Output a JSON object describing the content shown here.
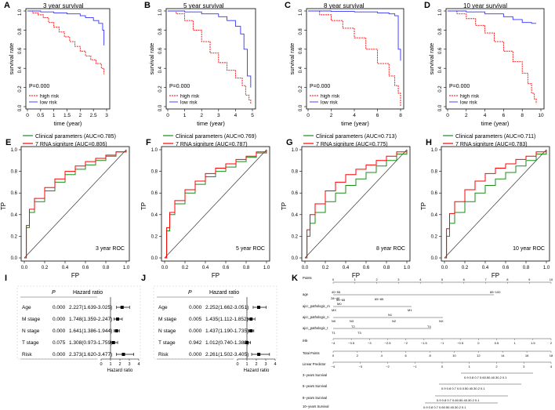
{
  "figure": {
    "colors": {
      "high": "#ff0000",
      "low": "#3333ff",
      "clinical": "#1a8c1a",
      "rna": "#ff0000",
      "axis": "#000000",
      "diag": "#333333"
    },
    "km_panels": [
      {
        "letter": "A",
        "title": "3 year survival",
        "pvalue": "P=0.000",
        "legend": [
          "high risk",
          "low risk"
        ]
      },
      {
        "letter": "B",
        "title": "5 year survival",
        "pvalue": "P=0.000",
        "legend": [
          "high risk",
          "low risk"
        ]
      },
      {
        "letter": "C",
        "title": "8 year survival",
        "pvalue": "P=0.000",
        "legend": [
          "high risk",
          "low risk"
        ]
      },
      {
        "letter": "D",
        "title": "10 year survival",
        "pvalue": "P=0.000",
        "legend": [
          "high risk",
          "low risk"
        ]
      }
    ],
    "roc_panels": [
      {
        "letter": "E",
        "label": "3 year ROC",
        "legend": [
          "Clinical parameters (AUC=0.785)",
          "7 RNA signiture (AUC=0.806)"
        ]
      },
      {
        "letter": "F",
        "label": "5 year ROC",
        "legend": [
          "Clinical parameters (AUC=0.769)",
          "7 RNA signiture (AUC=0.787)"
        ]
      },
      {
        "letter": "G",
        "label": "8 year ROC",
        "legend": [
          "Clinical parameters (AUC=0.713)",
          "7 RNA signiture (AUC=0.775)"
        ]
      },
      {
        "letter": "H",
        "label": "10 year ROC",
        "legend": [
          "Clinical parameters (AUC=0.711)",
          "7 RNA signiture (AUC=0.783)"
        ]
      }
    ],
    "forest_panels": [
      {
        "letter": "I",
        "header": [
          "",
          "P",
          "Hazard ratio"
        ],
        "xlabel": "Hazard ratio",
        "xticks": [
          "0",
          "1",
          "2",
          "3",
          "4"
        ]
      },
      {
        "letter": "J",
        "header": [
          "",
          "P",
          "Hazard ratio"
        ],
        "xlabel": "Hazard ratio",
        "xticks": [
          "0",
          "1",
          "2",
          "3",
          "4"
        ]
      }
    ],
    "nomogram": {
      "letter": "K",
      "rows": [
        "Points",
        "age",
        "ajcc_pathologic_m",
        "ajcc_pathologic_n",
        "ajcc_pathologic_t",
        "risk",
        "Total Points",
        "Linear Predictor",
        "3−years Survival",
        "5−years Survival",
        "8−years Survival",
        "10−years Survival"
      ],
      "points_ticks": [
        "0",
        "1",
        "2",
        "3",
        "4",
        "5",
        "6",
        "7",
        "8",
        "9",
        "10"
      ],
      "age_labels": [
        "40−55",
        "28−40",
        "55−65",
        "65−85",
        "85−100"
      ],
      "m_labels": [
        "MX",
        "M0",
        "M1"
      ],
      "n_labels": [
        "N0",
        "N3",
        "N2",
        "NX",
        "N1"
      ],
      "t_labels": [
        "T1",
        "T2",
        "T3",
        "T4"
      ],
      "risk_ticks": [
        "−4",
        "−3.5",
        "−3",
        "−2.5",
        "−2",
        "−1.5",
        "−1",
        "−0.5",
        "0",
        "0.5",
        "1",
        "1.5",
        "2"
      ],
      "total_ticks": [
        "0",
        "2",
        "4",
        "6",
        "8",
        "10",
        "12",
        "14",
        "16",
        "18"
      ],
      "lp_ticks": [
        "−4",
        "−3",
        "−2",
        "−1",
        "0",
        "1",
        "2",
        "3",
        "4"
      ],
      "surv3": "0.9    0.8  0.7 0.60.50.40.30.2 0.1",
      "surv5": "0.9     0.8  0.7 0.6 0.50.40.30.2 0.1",
      "surv8": "0.9    0.8  0.7 0.60.50.40.30.2 0.1",
      "surv10": "0.9    0.8  0.7 0.60.50.40.30.2 0.1"
    }
  },
  "chart_data": [
    {
      "type": "line",
      "id": "A",
      "title": "3 year survival",
      "xlabel": "time (year)",
      "ylabel": "survival rate",
      "xlim": [
        0,
        3
      ],
      "ylim": [
        0,
        1
      ],
      "xticks": [
        "0",
        "0.5",
        "1",
        "1.5",
        "2",
        "2.5",
        "3"
      ],
      "yticks": [
        "0.0",
        "0.2",
        "0.4",
        "0.6",
        "0.8",
        "1.0"
      ],
      "series": [
        {
          "name": "high risk",
          "x": [
            0,
            0.2,
            0.4,
            0.6,
            0.8,
            1.0,
            1.2,
            1.4,
            1.6,
            1.8,
            2.0,
            2.2,
            2.4,
            2.6,
            2.8,
            2.9
          ],
          "values": [
            1.0,
            0.98,
            0.96,
            0.93,
            0.88,
            0.83,
            0.78,
            0.73,
            0.68,
            0.63,
            0.58,
            0.53,
            0.49,
            0.45,
            0.4,
            0.34
          ]
        },
        {
          "name": "low risk",
          "x": [
            0,
            0.5,
            1.0,
            1.5,
            2.0,
            2.2,
            2.5,
            2.7,
            2.85,
            2.9
          ],
          "values": [
            1.0,
            0.99,
            0.98,
            0.97,
            0.95,
            0.93,
            0.9,
            0.87,
            0.8,
            0.64
          ]
        }
      ]
    },
    {
      "type": "line",
      "id": "B",
      "title": "5 year survival",
      "xlabel": "time (year)",
      "ylabel": "survival rate",
      "xlim": [
        0,
        5
      ],
      "ylim": [
        0,
        1
      ],
      "xticks": [
        "0",
        "1",
        "2",
        "3",
        "4",
        "5"
      ],
      "yticks": [
        "0.0",
        "0.2",
        "0.4",
        "0.6",
        "0.8",
        "1.0"
      ],
      "series": [
        {
          "name": "high risk",
          "x": [
            0,
            0.5,
            1.0,
            1.5,
            2.0,
            2.5,
            3.0,
            3.5,
            4.0,
            4.4,
            4.6,
            4.8,
            4.9
          ],
          "values": [
            1.0,
            0.97,
            0.9,
            0.8,
            0.68,
            0.56,
            0.46,
            0.38,
            0.3,
            0.22,
            0.12,
            0.07,
            0.03
          ]
        },
        {
          "name": "low risk",
          "x": [
            0,
            1,
            2,
            3,
            3.5,
            4.0,
            4.3,
            4.5,
            4.7,
            4.9
          ],
          "values": [
            1.0,
            0.99,
            0.97,
            0.94,
            0.9,
            0.84,
            0.76,
            0.6,
            0.32,
            0.2
          ]
        }
      ]
    },
    {
      "type": "line",
      "id": "C",
      "title": "8 year survival",
      "xlabel": "time (year)",
      "ylabel": "survival rate",
      "xlim": [
        0,
        8
      ],
      "ylim": [
        0,
        1
      ],
      "xticks": [
        "0",
        "2",
        "4",
        "6",
        "8"
      ],
      "yticks": [
        "0.0",
        "0.2",
        "0.4",
        "0.6",
        "0.8",
        "1.0"
      ],
      "series": [
        {
          "name": "high risk",
          "x": [
            0,
            1,
            2,
            3,
            4,
            5,
            6,
            7,
            7.5,
            7.8,
            8.0
          ],
          "values": [
            1.0,
            0.96,
            0.9,
            0.82,
            0.72,
            0.6,
            0.45,
            0.32,
            0.22,
            0.14,
            0.0
          ]
        },
        {
          "name": "low risk",
          "x": [
            0,
            2,
            4,
            6,
            7,
            7.5,
            7.8,
            8.0
          ],
          "values": [
            1.0,
            0.995,
            0.99,
            0.98,
            0.97,
            0.95,
            0.6,
            0.48
          ]
        }
      ]
    },
    {
      "type": "line",
      "id": "D",
      "title": "10 year survival",
      "xlabel": "time (year)",
      "ylabel": "survival rate",
      "xlim": [
        0,
        10
      ],
      "ylim": [
        0,
        1
      ],
      "xticks": [
        "0",
        "2",
        "4",
        "6",
        "8",
        "10"
      ],
      "yticks": [
        "0.0",
        "0.2",
        "0.4",
        "0.6",
        "0.8",
        "1.0"
      ],
      "series": [
        {
          "name": "high risk",
          "x": [
            0,
            1,
            2,
            3,
            4,
            5,
            6,
            7,
            8,
            8.6,
            9.0,
            9.3,
            9.5
          ],
          "values": [
            1.0,
            0.97,
            0.92,
            0.85,
            0.77,
            0.68,
            0.58,
            0.47,
            0.35,
            0.24,
            0.14,
            0.08,
            0.03
          ]
        },
        {
          "name": "low risk",
          "x": [
            0,
            2,
            4,
            6,
            7,
            8,
            9,
            9.5
          ],
          "values": [
            1.0,
            0.99,
            0.97,
            0.94,
            0.91,
            0.88,
            0.87,
            0.87
          ]
        }
      ]
    },
    {
      "type": "line",
      "id": "E",
      "xlabel": "FP",
      "ylabel": "TP",
      "xlim": [
        0,
        1
      ],
      "ylim": [
        0,
        1
      ],
      "xticks": [
        "0.0",
        "0.2",
        "0.4",
        "0.6",
        "0.8",
        "1.0"
      ],
      "yticks": [
        "0.0",
        "0.2",
        "0.4",
        "0.6",
        "0.8",
        "1.0"
      ],
      "series": [
        {
          "name": "Clinical parameters (AUC=0.785)",
          "x": [
            0,
            0.02,
            0.05,
            0.1,
            0.2,
            0.3,
            0.4,
            0.5,
            0.6,
            0.7,
            0.8,
            0.9,
            1.0
          ],
          "values": [
            0,
            0.28,
            0.42,
            0.52,
            0.62,
            0.7,
            0.77,
            0.82,
            0.86,
            0.9,
            0.94,
            0.98,
            1.0
          ]
        },
        {
          "name": "7 RNA signiture (AUC=0.806)",
          "x": [
            0,
            0.02,
            0.05,
            0.1,
            0.2,
            0.3,
            0.4,
            0.5,
            0.6,
            0.7,
            0.8,
            0.9,
            1.0
          ],
          "values": [
            0,
            0.3,
            0.45,
            0.55,
            0.65,
            0.73,
            0.8,
            0.85,
            0.89,
            0.92,
            0.95,
            0.98,
            1.0
          ]
        }
      ]
    },
    {
      "type": "line",
      "id": "F",
      "xlabel": "FP",
      "ylabel": "TP",
      "xlim": [
        0,
        1
      ],
      "ylim": [
        0,
        1
      ],
      "xticks": [
        "0.0",
        "0.2",
        "0.4",
        "0.6",
        "0.8",
        "1.0"
      ],
      "yticks": [
        "0.0",
        "0.2",
        "0.4",
        "0.6",
        "0.8",
        "1.0"
      ],
      "series": [
        {
          "name": "Clinical parameters (AUC=0.769)",
          "x": [
            0,
            0.02,
            0.05,
            0.1,
            0.2,
            0.3,
            0.4,
            0.5,
            0.6,
            0.7,
            0.8,
            0.9,
            1.0
          ],
          "values": [
            0,
            0.25,
            0.4,
            0.5,
            0.6,
            0.68,
            0.75,
            0.8,
            0.84,
            0.89,
            0.93,
            0.97,
            1.0
          ]
        },
        {
          "name": "7 RNA signiture (AUC=0.787)",
          "x": [
            0,
            0.02,
            0.05,
            0.1,
            0.2,
            0.3,
            0.4,
            0.5,
            0.6,
            0.7,
            0.8,
            0.9,
            1.0
          ],
          "values": [
            0,
            0.28,
            0.42,
            0.53,
            0.63,
            0.71,
            0.78,
            0.83,
            0.87,
            0.91,
            0.94,
            0.98,
            1.0
          ]
        }
      ]
    },
    {
      "type": "line",
      "id": "G",
      "xlabel": "FP",
      "ylabel": "TP",
      "xlim": [
        0,
        1
      ],
      "ylim": [
        0,
        1
      ],
      "xticks": [
        "0.0",
        "0.2",
        "0.4",
        "0.6",
        "0.8",
        "1.0"
      ],
      "yticks": [
        "0.0",
        "0.2",
        "0.4",
        "0.6",
        "0.8",
        "1.0"
      ],
      "series": [
        {
          "name": "Clinical parameters (AUC=0.713)",
          "x": [
            0,
            0.02,
            0.05,
            0.1,
            0.2,
            0.3,
            0.4,
            0.5,
            0.6,
            0.7,
            0.8,
            0.9,
            1.0
          ],
          "values": [
            0,
            0.2,
            0.32,
            0.42,
            0.52,
            0.6,
            0.67,
            0.73,
            0.79,
            0.85,
            0.9,
            0.96,
            1.0
          ]
        },
        {
          "name": "7 RNA signiture (AUC=0.775)",
          "x": [
            0,
            0.02,
            0.05,
            0.1,
            0.2,
            0.3,
            0.4,
            0.5,
            0.6,
            0.7,
            0.8,
            0.9,
            1.0
          ],
          "values": [
            0,
            0.26,
            0.4,
            0.5,
            0.62,
            0.7,
            0.77,
            0.82,
            0.86,
            0.9,
            0.94,
            0.98,
            1.0
          ]
        }
      ]
    },
    {
      "type": "line",
      "id": "H",
      "xlabel": "FP",
      "ylabel": "TP",
      "xlim": [
        0,
        1
      ],
      "ylim": [
        0,
        1
      ],
      "xticks": [
        "0.0",
        "0.2",
        "0.4",
        "0.6",
        "0.8",
        "1.0"
      ],
      "yticks": [
        "0.0",
        "0.2",
        "0.4",
        "0.6",
        "0.8",
        "1.0"
      ],
      "series": [
        {
          "name": "Clinical parameters (AUC=0.711)",
          "x": [
            0,
            0.02,
            0.05,
            0.1,
            0.2,
            0.3,
            0.4,
            0.5,
            0.6,
            0.7,
            0.8,
            0.9,
            1.0
          ],
          "values": [
            0,
            0.2,
            0.32,
            0.42,
            0.52,
            0.6,
            0.67,
            0.73,
            0.79,
            0.85,
            0.9,
            0.96,
            1.0
          ]
        },
        {
          "name": "7 RNA signiture (AUC=0.783)",
          "x": [
            0,
            0.02,
            0.05,
            0.1,
            0.2,
            0.3,
            0.4,
            0.5,
            0.6,
            0.7,
            0.8,
            0.9,
            1.0
          ],
          "values": [
            0,
            0.27,
            0.41,
            0.52,
            0.63,
            0.71,
            0.78,
            0.83,
            0.87,
            0.91,
            0.94,
            0.98,
            1.0
          ]
        }
      ]
    },
    {
      "type": "table",
      "id": "I",
      "title": "Forest plot",
      "xlim": [
        0,
        4
      ],
      "rows": [
        {
          "name": "Age",
          "p": "0.000",
          "hr_text": "2.227(1.639-3.025)",
          "hr": 2.227,
          "lo": 1.639,
          "hi": 3.025
        },
        {
          "name": "M stage",
          "p": "0.000",
          "hr_text": "1.748(1.359-2.247)",
          "hr": 1.748,
          "lo": 1.359,
          "hi": 2.247
        },
        {
          "name": "N stage",
          "p": "0.000",
          "hr_text": "1.641(1.386-1.944)",
          "hr": 1.641,
          "lo": 1.386,
          "hi": 1.944
        },
        {
          "name": "T stage",
          "p": "0.075",
          "hr_text": "1.308(0.973-1.759)",
          "hr": 1.308,
          "lo": 0.973,
          "hi": 1.759
        },
        {
          "name": "Risk",
          "p": "0.000",
          "hr_text": "2.373(1.620-3.477)",
          "hr": 2.373,
          "lo": 1.62,
          "hi": 3.477
        }
      ]
    },
    {
      "type": "table",
      "id": "J",
      "title": "Forest plot",
      "xlim": [
        0,
        4
      ],
      "rows": [
        {
          "name": "Age",
          "p": "0.000",
          "hr_text": "2.252(1.662-3.051)",
          "hr": 2.252,
          "lo": 1.662,
          "hi": 3.051
        },
        {
          "name": "M stage",
          "p": "0.005",
          "hr_text": "1.435(1.112-1.852)",
          "hr": 1.435,
          "lo": 1.112,
          "hi": 1.852
        },
        {
          "name": "N stage",
          "p": "0.000",
          "hr_text": "1.437(1.190-1.735)",
          "hr": 1.437,
          "lo": 1.19,
          "hi": 1.735
        },
        {
          "name": "T stage",
          "p": "0.942",
          "hr_text": "1.012(0.740-1.383)",
          "hr": 1.012,
          "lo": 0.74,
          "hi": 1.383
        },
        {
          "name": "Risk",
          "p": "0.000",
          "hr_text": "2.261(1.502-3.405)",
          "hr": 2.261,
          "lo": 1.502,
          "hi": 3.405
        }
      ]
    }
  ]
}
